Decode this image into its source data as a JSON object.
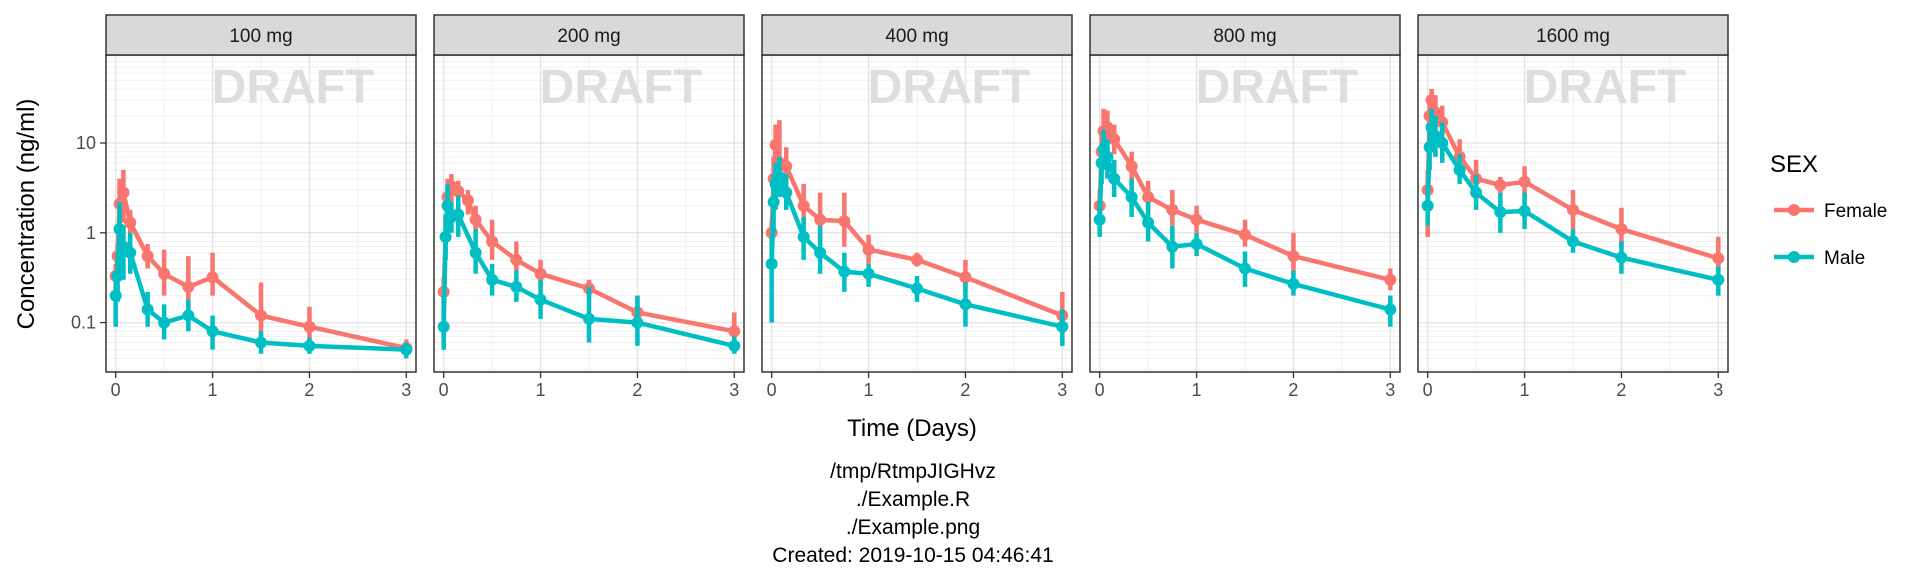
{
  "chart_data": {
    "type": "line",
    "xlabel": "Time (Days)",
    "ylabel": "Concentration (ng/ml)",
    "y_scale": "log10",
    "xlim": [
      -0.1,
      3.1
    ],
    "ylim_log10": [
      -1.55,
      1.98
    ],
    "x_ticks": [
      0,
      1,
      2,
      3
    ],
    "x_tick_labels": [
      "0",
      "1",
      "2",
      "3"
    ],
    "y_ticks": [
      0.1,
      1,
      10
    ],
    "y_tick_labels": [
      "0.1",
      "1",
      "10"
    ],
    "watermark": "DRAFT",
    "grid": true,
    "legend": {
      "title": "SEX",
      "position": "right"
    },
    "footnotes": [
      "/tmp/RtmpJIGHvz",
      "./Example.R",
      "./Example.png",
      "Created: 2019-10-15 04:46:41"
    ],
    "series_colors": {
      "Female": "#F8766D",
      "Male": "#00BFC4"
    },
    "x": [
      0,
      0.02,
      0.04,
      0.08,
      0.15,
      0.33,
      0.5,
      0.75,
      1,
      1.5,
      2,
      3
    ],
    "panels": [
      {
        "title": "100 mg",
        "series": [
          {
            "name": "Female",
            "y": [
              0.33,
              0.55,
              2.1,
              2.8,
              1.3,
              0.55,
              0.35,
              0.25,
              0.32,
              0.12,
              0.09,
              0.052
            ],
            "lo": [
              0.25,
              0.4,
              1.2,
              1.3,
              0.9,
              0.4,
              0.2,
              0.15,
              0.2,
              0.07,
              0.065,
              0.042
            ],
            "hi": [
              0.45,
              0.75,
              4.0,
              5.0,
              1.8,
              0.75,
              0.65,
              0.55,
              0.6,
              0.28,
              0.15,
              0.065
            ]
          },
          {
            "name": "Male",
            "y": [
              0.2,
              0.33,
              1.1,
              0.7,
              0.6,
              0.14,
              0.1,
              0.12,
              0.08,
              0.06,
              0.055,
              0.05
            ],
            "lo": [
              0.09,
              0.17,
              0.35,
              0.3,
              0.35,
              0.09,
              0.065,
              0.08,
              0.05,
              0.045,
              0.045,
              0.04
            ],
            "hi": [
              0.35,
              0.6,
              2.2,
              1.2,
              1.0,
              0.22,
              0.16,
              0.18,
              0.12,
              0.08,
              0.068,
              0.06
            ]
          }
        ]
      },
      {
        "title": "200 mg",
        "series": [
          {
            "name": "Female",
            "y": [
              0.22,
              0.9,
              2.5,
              3.3,
              2.9,
              2.3,
              1.4,
              0.8,
              0.5,
              0.35,
              0.24,
              0.13,
              0.08
            ],
            "x": [
              0,
              0.02,
              0.04,
              0.08,
              0.15,
              0.25,
              0.33,
              0.5,
              0.75,
              1,
              1.5,
              2,
              3
            ],
            "lo": [
              0.05,
              0.6,
              1.6,
              2.2,
              2.0,
              1.6,
              1.0,
              0.5,
              0.35,
              0.25,
              0.19,
              0.09,
              0.06
            ],
            "hi": [
              0.32,
              1.5,
              4.0,
              4.5,
              3.8,
              3.0,
              2.0,
              1.4,
              0.8,
              0.5,
              0.3,
              0.2,
              0.13
            ]
          },
          {
            "name": "Male",
            "y": [
              0.09,
              0.9,
              2.0,
              1.5,
              1.6,
              0.6,
              0.3,
              0.25,
              0.18,
              0.11,
              0.1,
              0.055
            ],
            "lo": [
              0.05,
              0.5,
              0.9,
              1.0,
              0.9,
              0.35,
              0.2,
              0.17,
              0.11,
              0.06,
              0.055,
              0.045
            ],
            "hi": [
              0.2,
              1.6,
              3.5,
              2.2,
              2.6,
              1.1,
              0.45,
              0.38,
              0.3,
              0.25,
              0.2,
              0.07
            ]
          }
        ]
      },
      {
        "title": "400 mg",
        "series": [
          {
            "name": "Female",
            "y": [
              1.0,
              4.0,
              9.5,
              6.0,
              5.5,
              2.0,
              1.4,
              1.35,
              0.65,
              0.5,
              0.32,
              0.12
            ],
            "lo": [
              0.7,
              2.5,
              5.0,
              3.5,
              3.0,
              1.3,
              0.8,
              0.7,
              0.45,
              0.42,
              0.22,
              0.07
            ],
            "hi": [
              1.4,
              7.0,
              16.0,
              18.0,
              9.0,
              3.5,
              2.8,
              2.8,
              0.95,
              0.6,
              0.5,
              0.22
            ]
          },
          {
            "name": "Male",
            "y": [
              0.45,
              2.2,
              3.5,
              4.2,
              2.8,
              0.9,
              0.6,
              0.37,
              0.35,
              0.24,
              0.16,
              0.09
            ],
            "lo": [
              0.1,
              1.0,
              1.8,
              2.5,
              1.8,
              0.5,
              0.35,
              0.22,
              0.25,
              0.17,
              0.09,
              0.055
            ],
            "hi": [
              0.9,
              4.5,
              6.0,
              7.0,
              4.5,
              1.5,
              1.2,
              0.6,
              0.45,
              0.33,
              0.28,
              0.14
            ]
          }
        ]
      },
      {
        "title": "800 mg",
        "series": [
          {
            "name": "Female",
            "y": [
              2.0,
              8.0,
              13.5,
              15.0,
              11.0,
              5.5,
              2.5,
              1.8,
              1.4,
              0.95,
              0.55,
              0.3
            ],
            "lo": [
              1.3,
              5.0,
              9.0,
              10.0,
              7.5,
              3.5,
              1.7,
              1.2,
              1.0,
              0.7,
              0.35,
              0.23
            ],
            "hi": [
              3.0,
              13.0,
              24.0,
              23.0,
              16.0,
              8.0,
              3.8,
              3.0,
              2.0,
              1.4,
              1.0,
              0.4
            ]
          },
          {
            "name": "Male",
            "y": [
              1.4,
              6.0,
              8.5,
              7.0,
              4.0,
              2.5,
              1.3,
              0.7,
              0.75,
              0.4,
              0.27,
              0.14
            ],
            "lo": [
              0.9,
              3.5,
              5.0,
              4.0,
              2.5,
              1.5,
              0.8,
              0.4,
              0.55,
              0.25,
              0.2,
              0.09
            ],
            "hi": [
              2.2,
              10.0,
              14.0,
              11.0,
              6.5,
              4.0,
              2.2,
              1.2,
              1.0,
              0.62,
              0.38,
              0.2
            ]
          }
        ]
      },
      {
        "title": "1600 mg",
        "series": [
          {
            "name": "Female",
            "y": [
              3.0,
              20.0,
              30.0,
              22.0,
              17.0,
              7.0,
              4.0,
              3.4,
              3.7,
              1.8,
              1.1,
              0.52
            ],
            "lo": [
              0.9,
              12.0,
              20.0,
              15.0,
              11.0,
              4.5,
              2.5,
              2.8,
              2.5,
              1.1,
              0.65,
              0.3
            ],
            "hi": [
              5.0,
              30.0,
              40.0,
              34.0,
              26.0,
              11.0,
              6.5,
              4.2,
              5.5,
              3.0,
              1.9,
              0.9
            ]
          },
          {
            "name": "Male",
            "y": [
              2.0,
              9.0,
              15.0,
              12.0,
              10.0,
              5.0,
              2.8,
              1.7,
              1.75,
              0.8,
              0.53,
              0.3
            ],
            "lo": [
              1.2,
              5.0,
              8.0,
              7.0,
              6.0,
              3.5,
              1.8,
              1.0,
              1.1,
              0.6,
              0.35,
              0.2
            ],
            "hi": [
              3.2,
              16.0,
              24.0,
              20.0,
              17.0,
              7.5,
              4.4,
              2.8,
              2.8,
              1.1,
              0.8,
              0.42
            ]
          }
        ]
      }
    ]
  }
}
